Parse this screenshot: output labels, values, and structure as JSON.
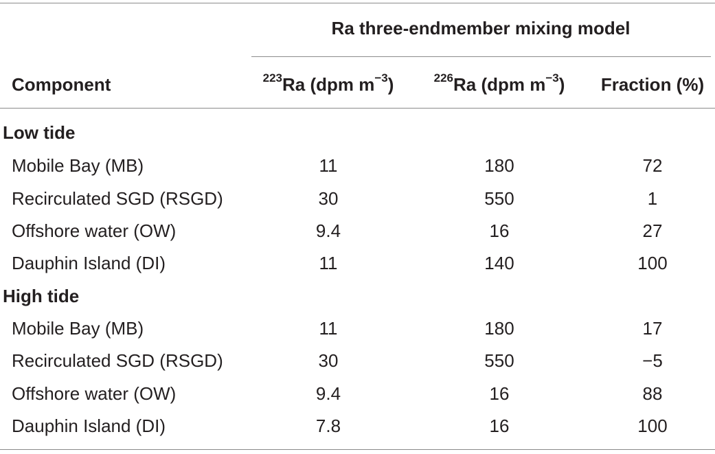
{
  "table": {
    "group_title": "Ra three-endmember mixing model",
    "headers": {
      "component": "Component",
      "ra223_sup": "223",
      "ra223_text": "Ra (dpm m",
      "ra223_exp": "−3",
      "ra223_close": ")",
      "ra226_sup": "226",
      "ra226_text": "Ra (dpm m",
      "ra226_exp": "−3",
      "ra226_close": ")",
      "fraction": "Fraction (%)"
    },
    "sections": [
      {
        "title": "Low tide",
        "rows": [
          {
            "component": "Mobile Bay (MB)",
            "ra223": "11",
            "ra226": "180",
            "fraction": "72"
          },
          {
            "component": "Recirculated SGD (RSGD)",
            "ra223": "30",
            "ra226": "550",
            "fraction": "1"
          },
          {
            "component": "Offshore water (OW)",
            "ra223": "9.4",
            "ra226": "16",
            "fraction": "27"
          },
          {
            "component": "Dauphin Island (DI)",
            "ra223": "11",
            "ra226": "140",
            "fraction": "100"
          }
        ]
      },
      {
        "title": "High tide",
        "rows": [
          {
            "component": "Mobile Bay (MB)",
            "ra223": "11",
            "ra226": "180",
            "fraction": "17"
          },
          {
            "component": "Recirculated SGD (RSGD)",
            "ra223": "30",
            "ra226": "550",
            "fraction": "−5"
          },
          {
            "component": "Offshore water (OW)",
            "ra223": "9.4",
            "ra226": "16",
            "fraction": "88"
          },
          {
            "component": "Dauphin Island (DI)",
            "ra223": "7.8",
            "ra226": "16",
            "fraction": "100"
          }
        ]
      }
    ]
  }
}
